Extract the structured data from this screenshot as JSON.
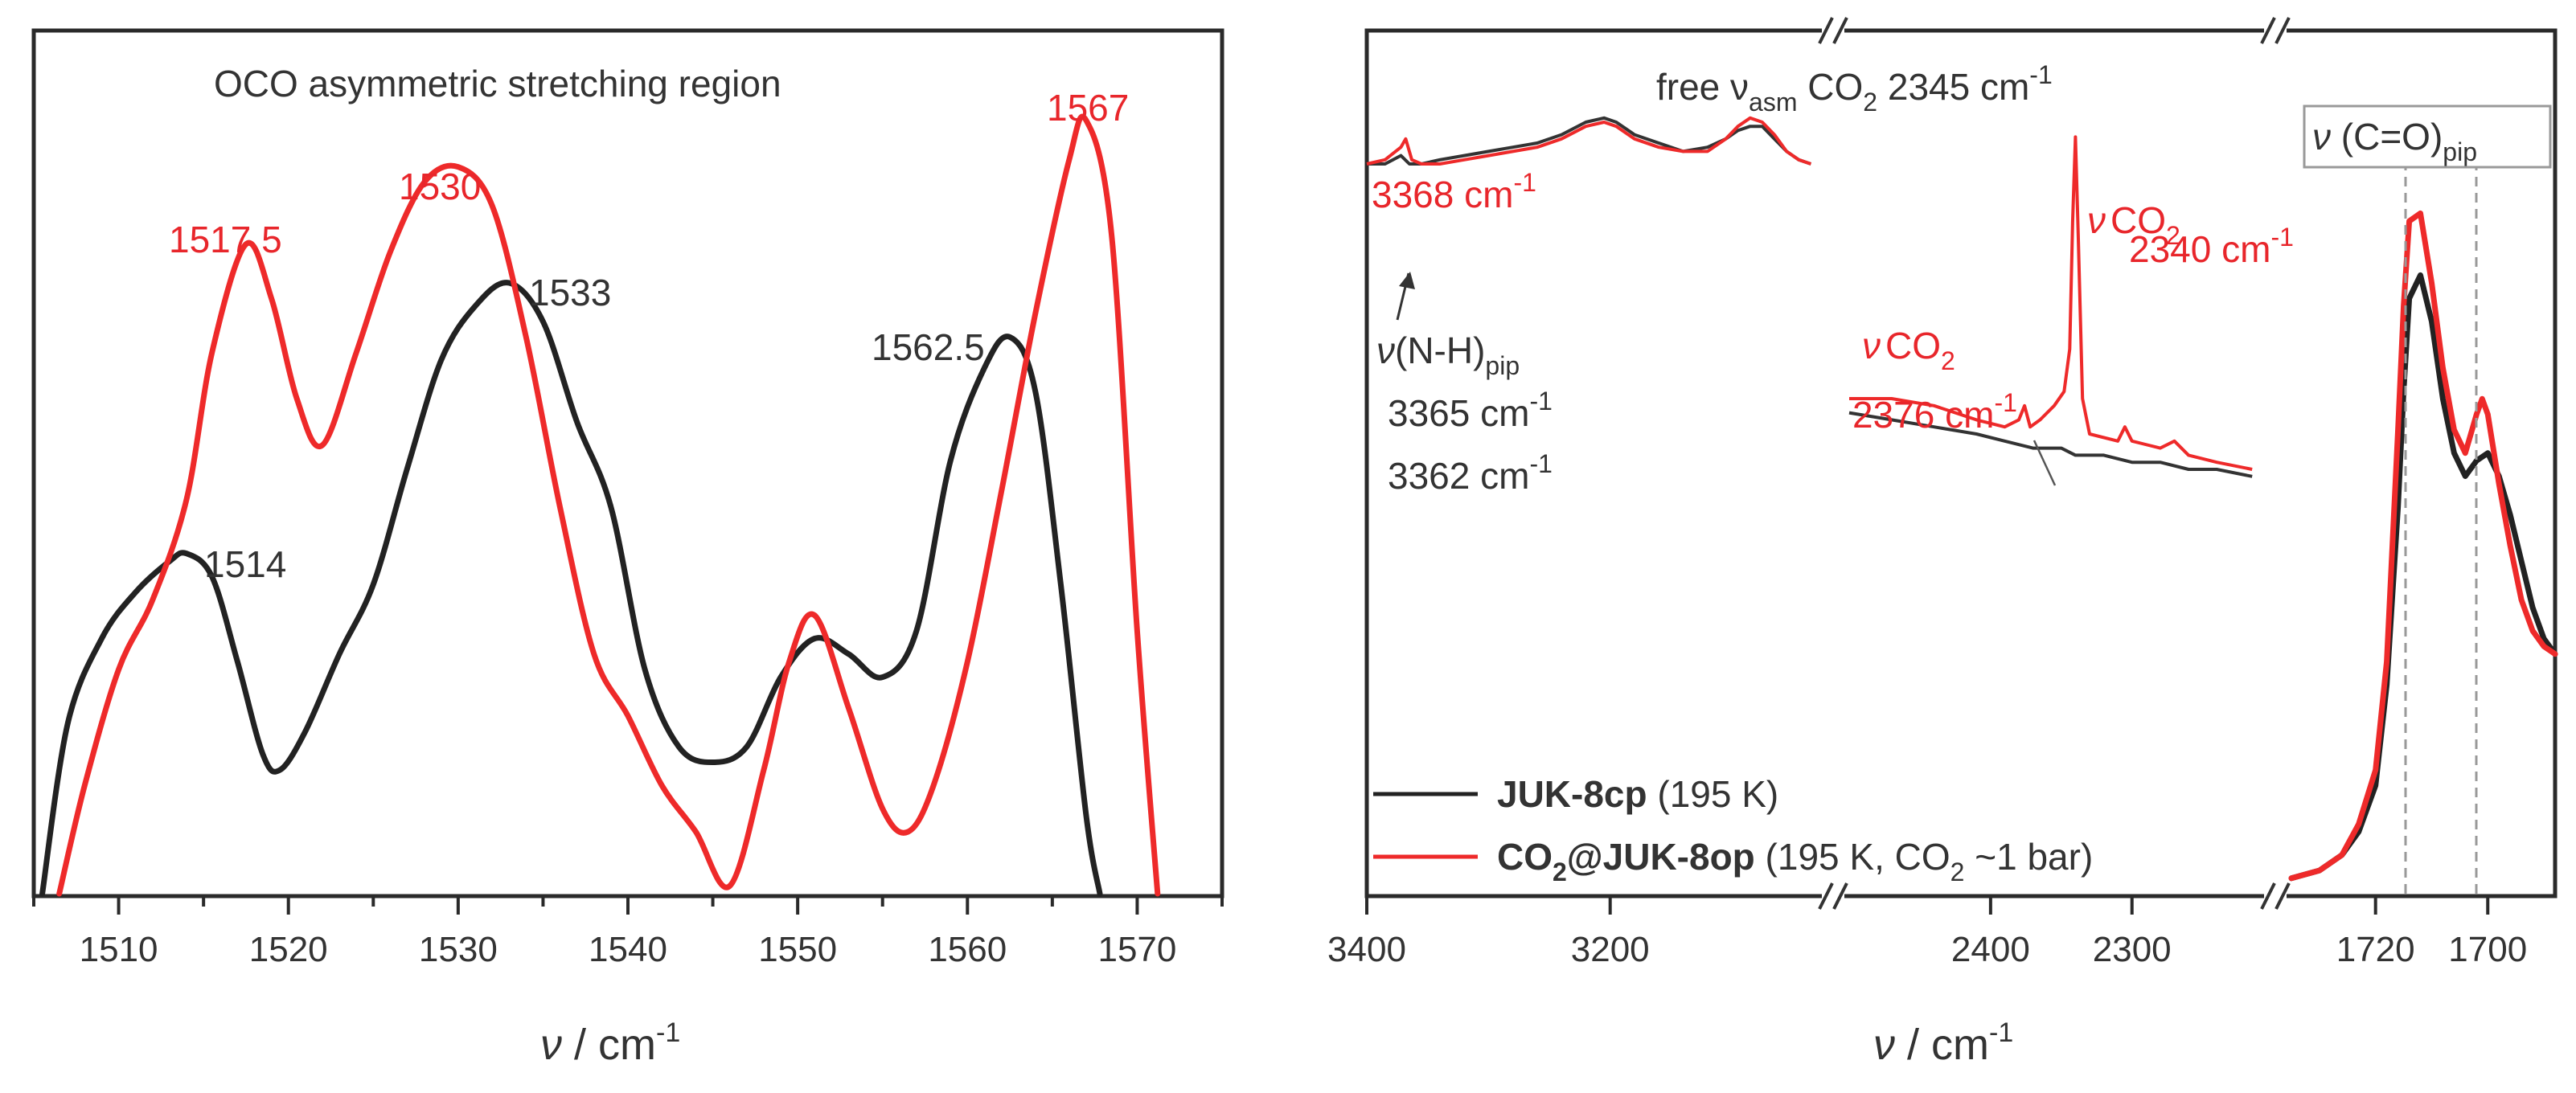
{
  "chart_data": [
    {
      "type": "line",
      "title": "OCO asymmetric stretching region",
      "xlabel_prefix": "ν",
      "xlabel_unit": " / cm",
      "xlabel_sup": "-1",
      "xlim": [
        1505,
        1575
      ],
      "ylim": [
        0,
        1
      ],
      "y_ticks": "none",
      "x_ticks": [
        1510,
        1520,
        1530,
        1540,
        1550,
        1560,
        1570
      ],
      "grid": false,
      "series": [
        {
          "color": "#222222",
          "x": [
            1505.5,
            1507,
            1509,
            1511,
            1513,
            1514,
            1515.5,
            1517,
            1518.5,
            1519.5,
            1521,
            1523,
            1525,
            1527,
            1529,
            1531,
            1533,
            1535,
            1537,
            1539,
            1541,
            1543,
            1545,
            1547,
            1549,
            1551,
            1553,
            1555,
            1557,
            1559,
            1561,
            1562.5,
            1564,
            1565.5,
            1567,
            1567.8
          ],
          "y": [
            0.0,
            0.22,
            0.33,
            0.39,
            0.43,
            0.44,
            0.41,
            0.3,
            0.18,
            0.16,
            0.21,
            0.31,
            0.4,
            0.55,
            0.69,
            0.76,
            0.79,
            0.74,
            0.61,
            0.5,
            0.29,
            0.19,
            0.17,
            0.19,
            0.28,
            0.33,
            0.31,
            0.28,
            0.34,
            0.56,
            0.68,
            0.72,
            0.65,
            0.4,
            0.1,
            0.0
          ]
        },
        {
          "color": "#ee2a2a",
          "x": [
            1506.5,
            1508,
            1510,
            1512,
            1514,
            1515.5,
            1517.5,
            1519,
            1520.5,
            1522,
            1524,
            1526,
            1528,
            1530,
            1532,
            1534,
            1536,
            1538,
            1540,
            1542,
            1544,
            1546,
            1548,
            1549.5,
            1551,
            1553,
            1555,
            1556.5,
            1558,
            1560,
            1562,
            1564,
            1566,
            1567,
            1568.5,
            1570,
            1571.2
          ],
          "y": [
            0.0,
            0.14,
            0.29,
            0.38,
            0.51,
            0.7,
            0.84,
            0.77,
            0.64,
            0.58,
            0.7,
            0.83,
            0.92,
            0.94,
            0.89,
            0.72,
            0.5,
            0.31,
            0.23,
            0.14,
            0.08,
            0.01,
            0.16,
            0.3,
            0.36,
            0.24,
            0.11,
            0.08,
            0.14,
            0.3,
            0.52,
            0.75,
            0.95,
            1.0,
            0.85,
            0.34,
            0.0
          ]
        }
      ],
      "annotations": [
        {
          "text": "1567",
          "color": "red"
        },
        {
          "text": "1530",
          "color": "red"
        },
        {
          "text": "1517.5",
          "color": "red"
        },
        {
          "text": "1533",
          "color": "black"
        },
        {
          "text": "1562.5",
          "color": "black"
        },
        {
          "text": "1514",
          "color": "black"
        }
      ]
    },
    {
      "type": "line",
      "title_prefix": "free ν",
      "title_sub": "asm",
      "title_mid": " CO",
      "title_sub2": "2",
      "title_suffix": " 2345 cm",
      "title_sup": "-1",
      "xlabel_prefix": "ν",
      "xlabel_unit": " / cm",
      "xlabel_sup": "-1",
      "broken_axis": true,
      "segments": [
        {
          "xlim": [
            3400,
            3030
          ],
          "ticks": [
            3400,
            3200
          ]
        },
        {
          "xlim": [
            2500,
            2210
          ],
          "ticks": [
            2400,
            2300
          ]
        },
        {
          "xlim": [
            1735,
            1688
          ],
          "ticks": [
            1720,
            1700
          ]
        }
      ],
      "ylim": [
        0,
        1
      ],
      "y_ticks": "none",
      "grid": false,
      "legend": {
        "placement": "lower-right",
        "entries": [
          {
            "bold": "JUK-8cp",
            "rest": " (195 K)",
            "color": "#222222"
          },
          {
            "bold": "CO",
            "bold_sub": "2",
            "bold2": "@JUK-8op",
            "rest": " (195 K, CO",
            "rest_sub": "2",
            "rest2": " ~1 bar)",
            "color": "#ee2a2a"
          }
        ]
      },
      "series": [
        {
          "name": "JUK-8cp (195 K)",
          "color": "#222222",
          "segment_1": {
            "x": [
              3400,
              3385,
              3372,
              3365,
              3355,
              3340,
              3320,
              3300,
              3280,
              3260,
              3240,
              3220,
              3205,
              3195,
              3180,
              3160,
              3140,
              3120,
              3105,
              3095,
              3085,
              3075,
              3065,
              3055,
              3045,
              3035
            ],
            "y": [
              0.8,
              0.8,
              0.82,
              0.8,
              0.8,
              0.81,
              0.82,
              0.83,
              0.84,
              0.85,
              0.87,
              0.9,
              0.91,
              0.9,
              0.87,
              0.85,
              0.83,
              0.84,
              0.86,
              0.88,
              0.89,
              0.89,
              0.86,
              0.83,
              0.81,
              0.8
            ]
          },
          "segment_2": {
            "x": [
              2500,
              2470,
              2440,
              2410,
              2390,
              2370,
              2350,
              2340,
              2320,
              2300,
              2280,
              2260,
              2240,
              2215
            ],
            "y": [
              0.53,
              0.52,
              0.51,
              0.5,
              0.49,
              0.48,
              0.48,
              0.47,
              0.47,
              0.46,
              0.46,
              0.45,
              0.45,
              0.44
            ]
          },
          "segment_3": {
            "x": [
              1735,
              1730,
              1726,
              1723,
              1720,
              1718,
              1716,
              1715,
              1714,
              1712,
              1710,
              1708,
              1706,
              1704,
              1702,
              1700,
              1698,
              1696,
              1694,
              1692,
              1690,
              1688
            ],
            "y": [
              0.02,
              0.03,
              0.05,
              0.08,
              0.14,
              0.27,
              0.5,
              0.65,
              0.77,
              0.8,
              0.74,
              0.64,
              0.57,
              0.54,
              0.56,
              0.57,
              0.54,
              0.49,
              0.43,
              0.37,
              0.33,
              0.31
            ]
          }
        },
        {
          "name": "CO2@JUK-8op (195 K, CO2 ~1 bar)",
          "color": "#ee2a2a",
          "segment_1": {
            "x": [
              3400,
              3385,
              3372,
              3368,
              3363,
              3355,
              3340,
              3320,
              3300,
              3280,
              3260,
              3240,
              3220,
              3205,
              3195,
              3180,
              3160,
              3140,
              3120,
              3105,
              3095,
              3085,
              3075,
              3065,
              3055,
              3045,
              3035
            ],
            "y": [
              0.8,
              0.81,
              0.84,
              0.86,
              0.81,
              0.8,
              0.8,
              0.81,
              0.82,
              0.83,
              0.84,
              0.86,
              0.89,
              0.9,
              0.89,
              0.86,
              0.84,
              0.83,
              0.83,
              0.86,
              0.89,
              0.91,
              0.9,
              0.87,
              0.83,
              0.81,
              0.8
            ]
          },
          "segment_2": {
            "x": [
              2500,
              2470,
              2440,
              2410,
              2390,
              2380,
              2376,
              2372,
              2365,
              2355,
              2348,
              2344,
              2342,
              2340,
              2338,
              2335,
              2330,
              2310,
              2305,
              2300,
              2280,
              2270,
              2260,
              2240,
              2215
            ],
            "y": [
              0.55,
              0.55,
              0.54,
              0.52,
              0.51,
              0.52,
              0.54,
              0.51,
              0.52,
              0.54,
              0.56,
              0.62,
              0.8,
              0.92,
              0.78,
              0.55,
              0.5,
              0.49,
              0.51,
              0.49,
              0.48,
              0.49,
              0.47,
              0.46,
              0.45
            ]
          },
          "segment_3": {
            "x": [
              1735,
              1730,
              1726,
              1723,
              1720,
              1718,
              1716,
              1715,
              1714,
              1712,
              1710,
              1708,
              1706,
              1704,
              1702,
              1701,
              1700,
              1698,
              1696,
              1694,
              1692,
              1690,
              1688
            ],
            "y": [
              0.02,
              0.03,
              0.05,
              0.09,
              0.16,
              0.3,
              0.6,
              0.76,
              0.87,
              0.88,
              0.79,
              0.68,
              0.6,
              0.57,
              0.62,
              0.64,
              0.62,
              0.53,
              0.45,
              0.38,
              0.34,
              0.32,
              0.31
            ]
          }
        }
      ],
      "annotations": {
        "nh_red": {
          "text": "3368 cm",
          "sup": "-1"
        },
        "nh_label": {
          "prefix": "ν",
          "text": "(N-H)",
          "sub": "pip"
        },
        "nh_black_1": {
          "text": "3365 cm",
          "sup": "-1"
        },
        "nh_black_2": {
          "text": "3362 cm",
          "sup": "-1"
        },
        "co2_a_label": {
          "prefix": "ν",
          "text": "CO",
          "sub": "2"
        },
        "co2_a_value": {
          "text": "2376 cm",
          "sup": "-1"
        },
        "co2_b_label": {
          "prefix": "ν",
          "text": "CO",
          "sub": "2"
        },
        "co2_b_value": {
          "text": "2340 cm",
          "sup": "-1"
        },
        "co_label": {
          "prefix": "ν",
          "text": " (C=O)",
          "sub": "pip"
        },
        "dashed_lines_at": [
          1712,
          1702
        ]
      }
    }
  ]
}
